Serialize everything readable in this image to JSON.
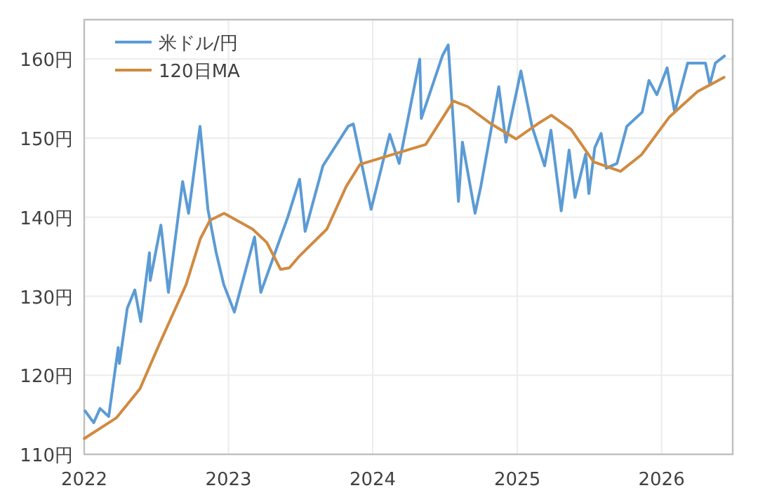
{
  "chart_data": {
    "type": "line",
    "legend": "top left",
    "grid": true,
    "marker": "none",
    "line_style": "solid",
    "xlim": [
      "2022-01-01",
      "2026-06-30"
    ],
    "xticks": [
      {
        "value": "2022-01-01",
        "label": "2022"
      },
      {
        "value": "2023-01-01",
        "label": "2023"
      },
      {
        "value": "2024-01-01",
        "label": "2024"
      },
      {
        "value": "2025-01-01",
        "label": "2025"
      },
      {
        "value": "2026-01-01",
        "label": "2026"
      }
    ],
    "ylim": [
      110,
      165
    ],
    "yticks": [
      {
        "value": 110,
        "label": "110円"
      },
      {
        "value": 120,
        "label": "120円"
      },
      {
        "value": 130,
        "label": "130円"
      },
      {
        "value": 140,
        "label": "140円"
      },
      {
        "value": 150,
        "label": "150円"
      },
      {
        "value": 160,
        "label": "160円"
      }
    ],
    "series": [
      {
        "name": "米ドル/円",
        "color": "#5b9bd5",
        "x": [
          "2022-01-03",
          "2022-01-25",
          "2022-02-10",
          "2022-03-04",
          "2022-03-28",
          "2022-03-31",
          "2022-04-20",
          "2022-05-09",
          "2022-05-24",
          "2022-06-15",
          "2022-06-17",
          "2022-07-14",
          "2022-08-02",
          "2022-09-07",
          "2022-09-22",
          "2022-10-21",
          "2022-11-10",
          "2022-12-01",
          "2022-12-20",
          "2023-01-16",
          "2023-03-08",
          "2023-03-24",
          "2023-05-31",
          "2023-06-30",
          "2023-07-14",
          "2023-08-28",
          "2023-10-31",
          "2023-11-13",
          "2023-12-28",
          "2024-02-13",
          "2024-03-08",
          "2024-04-29",
          "2024-05-03",
          "2024-06-26",
          "2024-07-10",
          "2024-08-05",
          "2024-08-15",
          "2024-09-16",
          "2024-10-01",
          "2024-11-15",
          "2024-12-03",
          "2025-01-10",
          "2025-02-07",
          "2025-03-11",
          "2025-03-27",
          "2025-04-22",
          "2025-05-12",
          "2025-05-27",
          "2025-06-23",
          "2025-07-01",
          "2025-07-16",
          "2025-08-01",
          "2025-08-14",
          "2025-09-10",
          "2025-10-05",
          "2025-11-13",
          "2025-11-30",
          "2025-12-20",
          "2026-01-15",
          "2026-02-03",
          "2026-03-08",
          "2026-04-22",
          "2026-05-03",
          "2026-05-17",
          "2026-06-09"
        ],
        "values": [
          115.5,
          114,
          115.8,
          114.8,
          123.5,
          121.5,
          128.5,
          130.8,
          126.8,
          135.5,
          132,
          139,
          130.5,
          144.5,
          140.5,
          151.5,
          141,
          135.5,
          131.5,
          128,
          137.5,
          130.5,
          140,
          144.8,
          138.2,
          146.5,
          151.5,
          151.8,
          141,
          150.5,
          146.8,
          160,
          152.5,
          160.5,
          161.8,
          142,
          149.5,
          140.5,
          144,
          156.5,
          149.5,
          158.5,
          151.5,
          146.5,
          151,
          140.8,
          148.5,
          142.5,
          148,
          143,
          148.8,
          150.6,
          146.2,
          146.8,
          151.5,
          153.3,
          157.3,
          155.5,
          158.9,
          153.3,
          159.5,
          159.5,
          156.8,
          159.5,
          160.4
        ]
      },
      {
        "name": "120日MA",
        "color": "#d08a40",
        "x": [
          "2022-01-01",
          "2022-03-23",
          "2022-05-22",
          "2022-07-08",
          "2022-09-16",
          "2022-10-22",
          "2022-11-15",
          "2022-12-21",
          "2023-03-03",
          "2023-04-08",
          "2023-05-13",
          "2023-06-04",
          "2023-06-28",
          "2023-09-07",
          "2023-10-26",
          "2023-11-30",
          "2024-01-16",
          "2024-05-14",
          "2024-07-23",
          "2024-08-28",
          "2024-10-27",
          "2024-12-29",
          "2025-02-21",
          "2025-03-28",
          "2025-05-17",
          "2025-07-13",
          "2025-09-19",
          "2025-11-11",
          "2026-01-21",
          "2026-04-02",
          "2026-06-08"
        ],
        "values": [
          112,
          114.6,
          118.3,
          123.7,
          131.5,
          137.3,
          139.6,
          140.5,
          138.5,
          136.8,
          133.4,
          133.6,
          135,
          138.5,
          143.9,
          146.7,
          147.4,
          149.2,
          154.7,
          154,
          151.8,
          149.9,
          151.8,
          152.9,
          151.1,
          147,
          145.8,
          147.9,
          152.7,
          155.9,
          157.7
        ]
      }
    ]
  }
}
